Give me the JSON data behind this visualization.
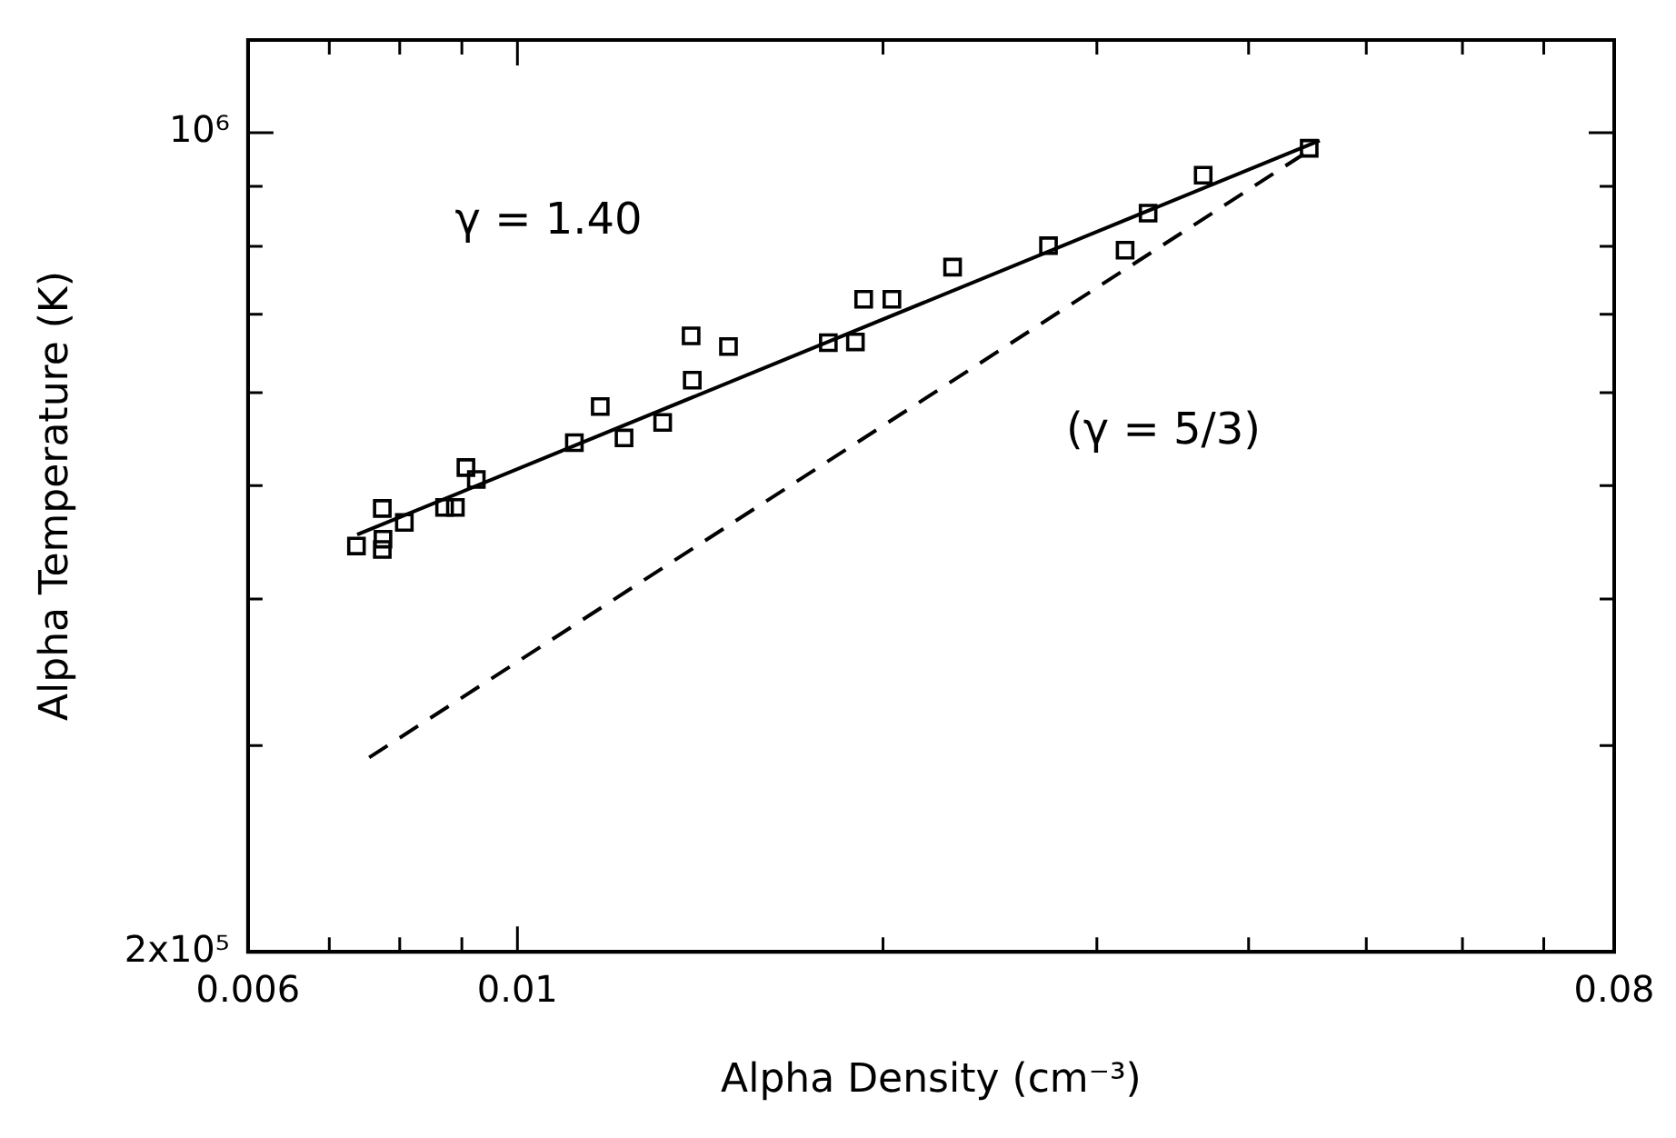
{
  "chart_data": {
    "type": "scatter",
    "xlabel": "Alpha Density (cm⁻³)",
    "ylabel": "Alpha Temperature (K)",
    "log": "xy",
    "grid": false,
    "legend": false,
    "marker": "square",
    "xlim": [
      0.006,
      0.08
    ],
    "xticks": [
      0.006,
      {
        "value": 0.007,
        "label": null
      },
      {
        "value": 0.008,
        "label": null
      },
      {
        "value": 0.009,
        "label": null
      },
      0.01,
      {
        "value": 0.02,
        "label": null
      },
      {
        "value": 0.03,
        "label": null
      },
      {
        "value": 0.04,
        "label": null
      },
      {
        "value": 0.05,
        "label": null
      },
      {
        "value": 0.06,
        "label": null
      },
      {
        "value": 0.07,
        "label": null
      },
      0.08
    ],
    "ylim": [
      200000,
      1200000
    ],
    "yticks": [
      {
        "value": 200000,
        "label": "2x10⁵"
      },
      {
        "value": 300000,
        "label": null
      },
      {
        "value": 400000,
        "label": null
      },
      {
        "value": 500000,
        "label": null
      },
      {
        "value": 600000,
        "label": null
      },
      {
        "value": 700000,
        "label": null
      },
      {
        "value": 800000,
        "label": null
      },
      {
        "value": 900000,
        "label": null
      },
      {
        "value": 1000000,
        "label": "10⁶"
      }
    ],
    "series": [
      {
        "color": "#000000",
        "x": [
          0.00737,
          0.00774,
          0.00775,
          0.00774,
          0.00807,
          0.00871,
          0.00889,
          0.00907,
          0.00925,
          0.01114,
          0.0117,
          0.01224,
          0.01317,
          0.01393,
          0.0139,
          0.01492,
          0.01803,
          0.01898,
          0.01928,
          0.02034,
          0.02282,
          0.02737,
          0.03165,
          0.03306,
          0.0367,
          0.04487
        ],
        "values": [
          444000,
          478000,
          450000,
          441000,
          465000,
          479000,
          479000,
          518000,
          506000,
          544000,
          584000,
          549000,
          566000,
          615000,
          671000,
          657000,
          662000,
          663000,
          721000,
          721000,
          768000,
          801000,
          794000,
          854000,
          920000,
          970000
        ]
      },
      {
        "type": "line",
        "color": "#000000",
        "line_style": "solid",
        "marker": "none",
        "x": [
          0.00738,
          0.04577
        ],
        "values": [
          454000,
          985000
        ]
      },
      {
        "type": "line",
        "color": "#000000",
        "line_style": "dashed",
        "marker": "none",
        "x": [
          0.00755,
          0.04503
        ],
        "values": [
          293000,
          968000
        ]
      }
    ],
    "annotations": [
      "γ = 1.40",
      "(γ = 5/3)"
    ]
  }
}
